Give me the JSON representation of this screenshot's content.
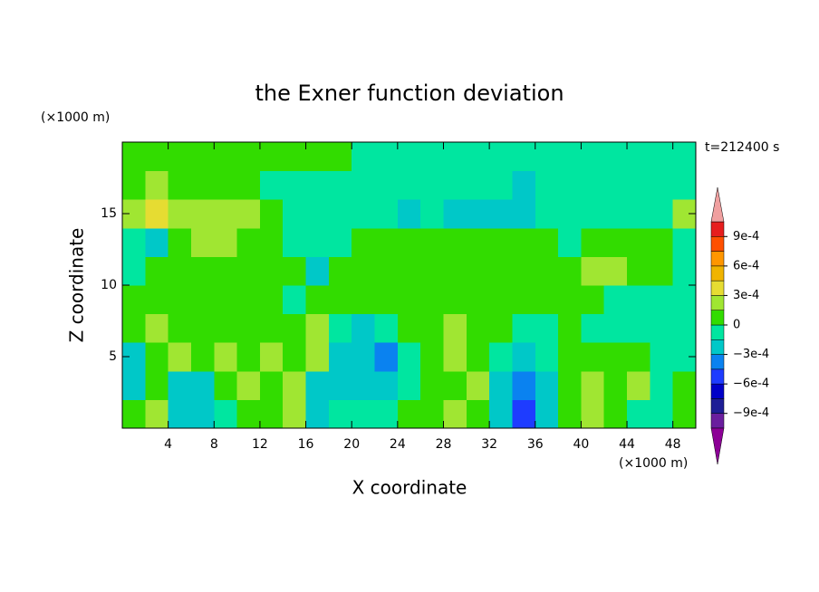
{
  "chart_data": {
    "type": "contourf",
    "title": "the Exner function deviation",
    "x_label": "X coordinate",
    "y_label": "Z coordinate",
    "x_unit_label": "(×1000 m)",
    "y_unit_label": "(×1000 m)",
    "time_label": "t=212400 s",
    "xlim": [
      0,
      50
    ],
    "ylim": [
      0,
      20
    ],
    "xticks": [
      4,
      8,
      12,
      16,
      20,
      24,
      28,
      32,
      36,
      40,
      44,
      48
    ],
    "yticks": [
      5,
      10,
      15
    ],
    "x": [
      1,
      3,
      5,
      7,
      9,
      11,
      13,
      15,
      17,
      19,
      21,
      23,
      25,
      27,
      29,
      31,
      33,
      35,
      37,
      39,
      41,
      43,
      45,
      47,
      49
    ],
    "y": [
      1,
      3,
      5,
      7,
      9,
      11,
      13,
      15,
      17,
      19
    ],
    "z": [
      [
        5e-05,
        0.0002,
        -0.0002,
        -0.0002,
        -5e-05,
        5e-05,
        5e-05,
        0.0002,
        -0.0002,
        -5e-05,
        -5e-05,
        -5e-05,
        5e-05,
        5e-05,
        0.0002,
        5e-05,
        -0.0002,
        -0.0006,
        -0.0002,
        5e-05,
        0.0002,
        5e-05,
        -5e-05,
        -5e-05,
        5e-05
      ],
      [
        -0.0002,
        5e-05,
        -0.0002,
        -0.0002,
        5e-05,
        0.0002,
        5e-05,
        0.0002,
        -0.0002,
        -0.0002,
        -0.0002,
        -0.0002,
        -5e-05,
        5e-05,
        5e-05,
        0.0002,
        -0.0002,
        -0.0004,
        -0.0002,
        5e-05,
        0.0002,
        5e-05,
        0.0002,
        -5e-05,
        5e-05
      ],
      [
        -0.0002,
        5e-05,
        0.0002,
        5e-05,
        0.0002,
        5e-05,
        0.0002,
        5e-05,
        0.0002,
        -0.0002,
        -0.0002,
        -0.0004,
        -5e-05,
        5e-05,
        0.0002,
        5e-05,
        -5e-05,
        -0.0002,
        -5e-05,
        5e-05,
        5e-05,
        5e-05,
        5e-05,
        -5e-05,
        -5e-05
      ],
      [
        5e-05,
        0.0002,
        5e-05,
        5e-05,
        5e-05,
        5e-05,
        5e-05,
        5e-05,
        0.0002,
        -5e-05,
        -0.0002,
        -5e-05,
        5e-05,
        5e-05,
        0.0002,
        5e-05,
        5e-05,
        -5e-05,
        -5e-05,
        5e-05,
        -5e-05,
        -5e-05,
        -5e-05,
        -5e-05,
        -5e-05
      ],
      [
        5e-05,
        5e-05,
        5e-05,
        5e-05,
        5e-05,
        5e-05,
        5e-05,
        -5e-05,
        5e-05,
        5e-05,
        5e-05,
        5e-05,
        5e-05,
        5e-05,
        5e-05,
        5e-05,
        5e-05,
        5e-05,
        5e-05,
        5e-05,
        5e-05,
        -5e-05,
        -5e-05,
        -5e-05,
        -5e-05
      ],
      [
        -5e-05,
        5e-05,
        5e-05,
        5e-05,
        5e-05,
        5e-05,
        5e-05,
        5e-05,
        -0.0002,
        5e-05,
        5e-05,
        5e-05,
        5e-05,
        5e-05,
        5e-05,
        5e-05,
        5e-05,
        5e-05,
        5e-05,
        5e-05,
        0.0002,
        0.0002,
        5e-05,
        5e-05,
        -5e-05
      ],
      [
        -5e-05,
        -0.0002,
        5e-05,
        0.0002,
        0.0002,
        5e-05,
        5e-05,
        -5e-05,
        -5e-05,
        -5e-05,
        5e-05,
        5e-05,
        5e-05,
        5e-05,
        5e-05,
        5e-05,
        5e-05,
        5e-05,
        5e-05,
        -5e-05,
        5e-05,
        5e-05,
        5e-05,
        5e-05,
        -5e-05
      ],
      [
        0.0002,
        0.0004,
        0.0002,
        0.0002,
        0.0002,
        0.0002,
        5e-05,
        -5e-05,
        -5e-05,
        -5e-05,
        -5e-05,
        -5e-05,
        -0.0002,
        -5e-05,
        -0.0002,
        -0.0002,
        -0.0002,
        -0.0002,
        -5e-05,
        -5e-05,
        -5e-05,
        -5e-05,
        -5e-05,
        -5e-05,
        0.0002
      ],
      [
        5e-05,
        0.0002,
        5e-05,
        5e-05,
        5e-05,
        5e-05,
        -5e-05,
        -5e-05,
        -5e-05,
        -5e-05,
        -5e-05,
        -5e-05,
        -5e-05,
        -5e-05,
        -5e-05,
        -5e-05,
        -5e-05,
        -0.0002,
        -5e-05,
        -5e-05,
        -5e-05,
        -5e-05,
        -5e-05,
        -5e-05,
        -5e-05
      ],
      [
        5e-05,
        5e-05,
        5e-05,
        5e-05,
        5e-05,
        5e-05,
        5e-05,
        5e-05,
        5e-05,
        5e-05,
        -5e-05,
        -5e-05,
        -5e-05,
        -5e-05,
        -5e-05,
        -5e-05,
        -5e-05,
        -5e-05,
        -5e-05,
        -5e-05,
        -5e-05,
        -5e-05,
        -5e-05,
        -5e-05,
        -5e-05
      ]
    ],
    "levels": [
      -0.00105,
      -0.0009,
      -0.00075,
      -0.0006,
      -0.00045,
      -0.0003,
      -0.00015,
      0,
      0.00015,
      0.0003,
      0.00045,
      0.0006,
      0.00075,
      0.0009,
      0.00105
    ],
    "colors": [
      "#6a1e9e",
      "#1e1e96",
      "#0000c8",
      "#1e3cff",
      "#0a82f0",
      "#00c8c8",
      "#00e6a0",
      "#32dc00",
      "#a0e632",
      "#e6dc32",
      "#f0b400",
      "#ff9600",
      "#ff5000",
      "#e61e1e"
    ],
    "extend_colors": [
      "#8c0096",
      "#f0a0a0"
    ],
    "colorbar_ticks": [
      {
        "value": 0.0009,
        "label": "9e-4"
      },
      {
        "value": 0.0006,
        "label": "6e-4"
      },
      {
        "value": 0.0003,
        "label": "3e-4"
      },
      0,
      {
        "value": -0.0003,
        "label": "−3e-4"
      },
      {
        "value": -0.0006,
        "label": "−6e-4"
      },
      {
        "value": -0.0009,
        "label": "−9e-4"
      }
    ]
  }
}
